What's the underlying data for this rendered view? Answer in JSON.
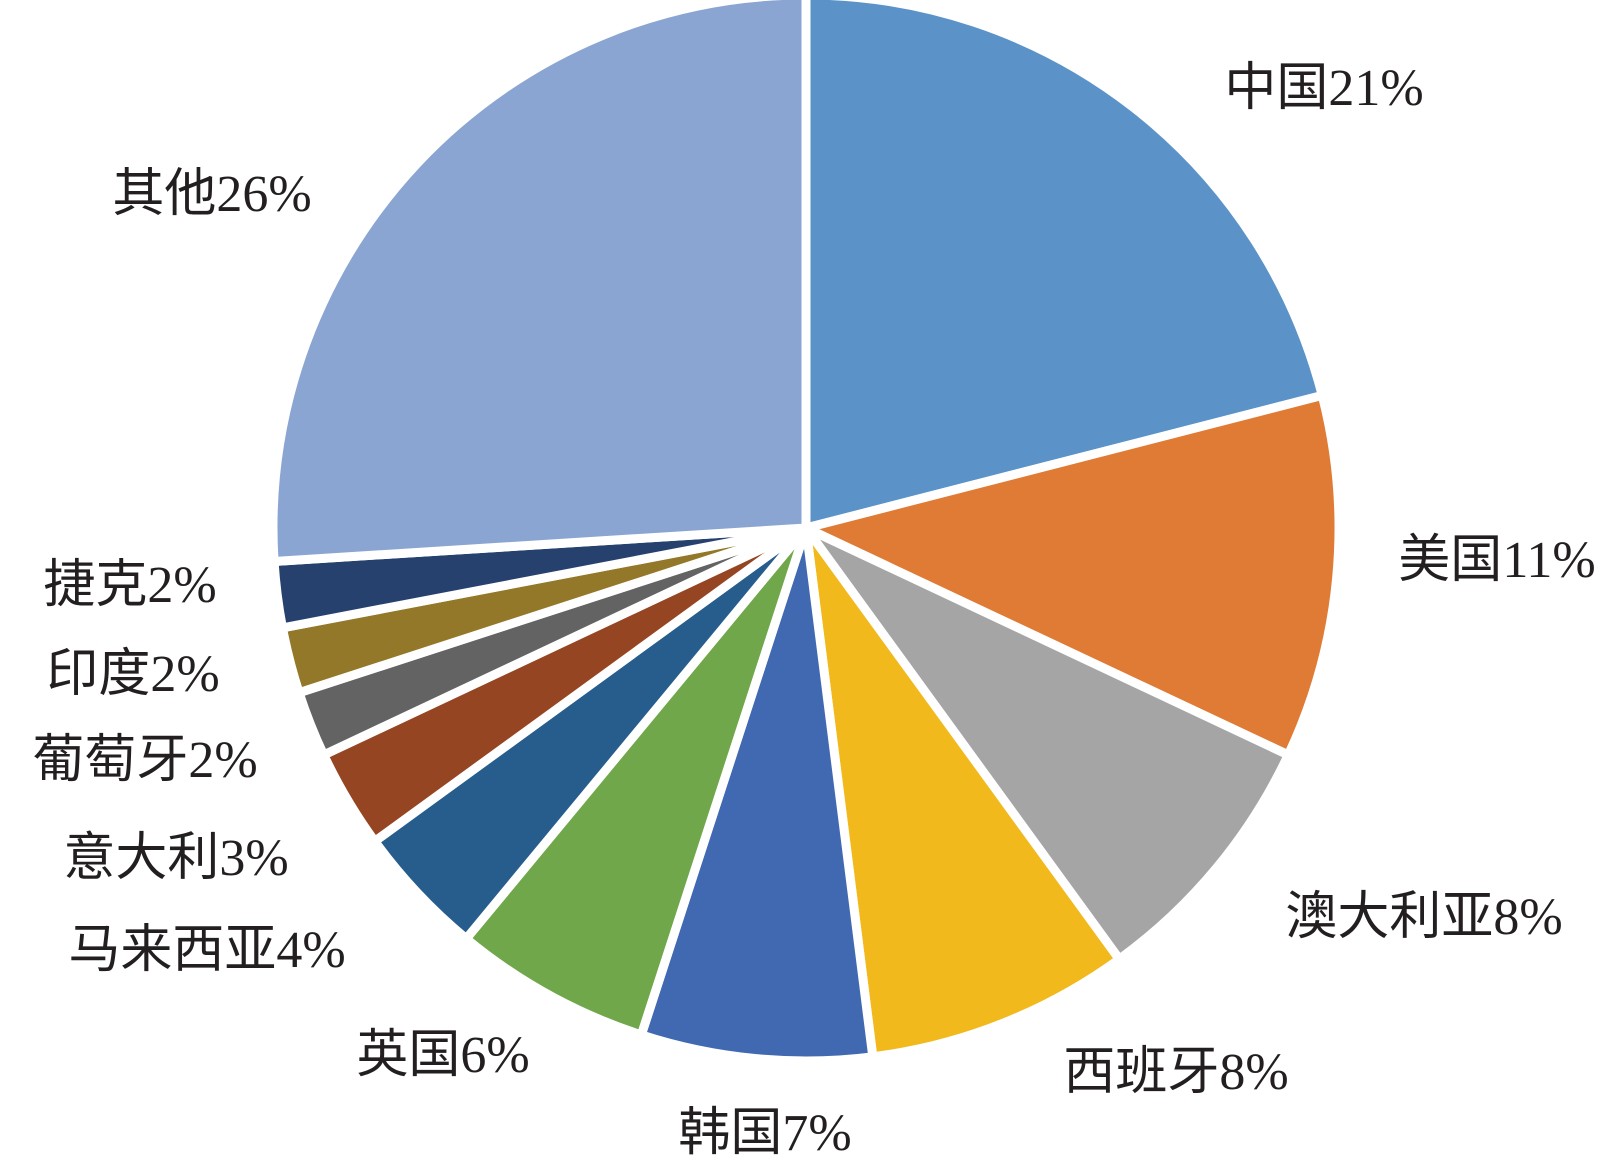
{
  "chart_data": {
    "type": "pie",
    "categories": [
      "中国",
      "美国",
      "澳大利亚",
      "西班牙",
      "韩国",
      "英国",
      "马来西亚",
      "意大利",
      "葡萄牙",
      "印度",
      "捷克",
      "其他"
    ],
    "values": [
      21,
      11,
      8,
      8,
      7,
      6,
      4,
      3,
      2,
      2,
      2,
      26
    ],
    "value_labels": [
      "21%",
      "11%",
      "8%",
      "8%",
      "7%",
      "6%",
      "4%",
      "3%",
      "2%",
      "2%",
      "2%",
      "26%"
    ],
    "colors": [
      "#5b93c9",
      "#e07b35",
      "#a5a5a5",
      "#f2b91c",
      "#4169b2",
      "#70a74a",
      "#275d8c",
      "#964523",
      "#636363",
      "#94782a",
      "#27416f",
      "#8aa5d2"
    ]
  }
}
